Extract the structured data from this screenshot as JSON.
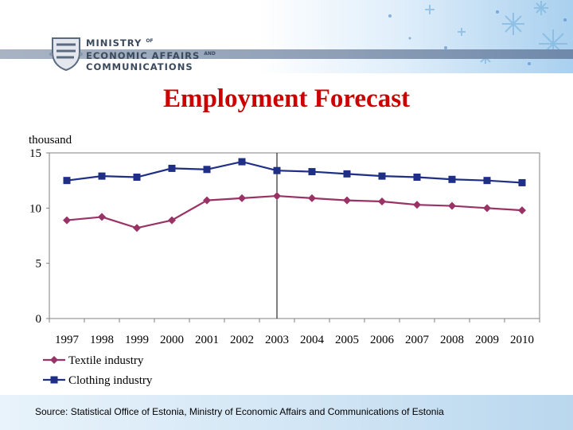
{
  "header": {
    "ministry_line1": "MINISTRY",
    "ministry_line1_suffix": "OF",
    "ministry_line2": "ECONOMIC AFFAIRS",
    "ministry_line2_suffix": "AND",
    "ministry_line3": "COMMUNICATIONS"
  },
  "title": "Employment Forecast",
  "footer": {
    "source": "Source: Statistical Office of Estonia, Ministry of Economic Affairs and Communications of Estonia"
  },
  "colors": {
    "title": "#cc0000",
    "textile": "#993366",
    "clothing": "#1f2f86"
  },
  "chart_data": {
    "type": "line",
    "ylabel": "thousand",
    "ylim": [
      0,
      15
    ],
    "yticks": [
      0,
      5,
      10,
      15
    ],
    "categories": [
      "1997",
      "1998",
      "1999",
      "2000",
      "2001",
      "2002",
      "2003",
      "2004",
      "2005",
      "2006",
      "2007",
      "2008",
      "2009",
      "2010"
    ],
    "forecast_divider_after": "2003",
    "legend_position": "bottom-left",
    "series": [
      {
        "name": "Textile industry",
        "marker": "diamond",
        "values": [
          8.9,
          9.2,
          8.2,
          8.9,
          10.7,
          10.9,
          11.1,
          10.9,
          10.7,
          10.6,
          10.3,
          10.2,
          10.0,
          9.8
        ]
      },
      {
        "name": "Clothing industry",
        "marker": "square",
        "values": [
          12.5,
          12.9,
          12.8,
          13.6,
          13.5,
          14.2,
          13.4,
          13.3,
          13.1,
          12.9,
          12.8,
          12.6,
          12.5,
          12.3
        ]
      }
    ]
  }
}
